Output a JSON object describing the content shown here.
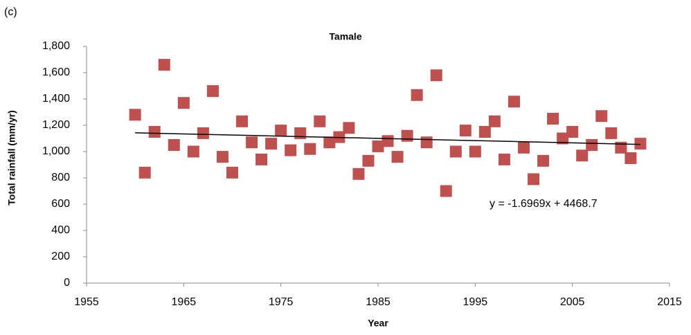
{
  "chart_data": {
    "type": "scatter",
    "panel_label": "(c)",
    "title": "Tamale",
    "x_label": "Year",
    "y_label": "Total rainfall (mm/yr)",
    "x": [
      1960,
      1961,
      1962,
      1963,
      1964,
      1965,
      1966,
      1967,
      1968,
      1969,
      1970,
      1971,
      1972,
      1973,
      1974,
      1975,
      1976,
      1977,
      1978,
      1979,
      1980,
      1981,
      1982,
      1983,
      1984,
      1985,
      1986,
      1987,
      1988,
      1989,
      1990,
      1991,
      1992,
      1993,
      1994,
      1995,
      1996,
      1997,
      1998,
      1999,
      2000,
      2001,
      2002,
      2003,
      2004,
      2005,
      2006,
      2007,
      2008,
      2009,
      2010,
      2011,
      2012
    ],
    "series": [
      {
        "color": "#c0504d",
        "values": [
          1280,
          840,
          1150,
          1660,
          1050,
          1370,
          1000,
          1140,
          1460,
          960,
          840,
          1230,
          1070,
          940,
          1060,
          1160,
          1010,
          1140,
          1020,
          1230,
          1070,
          1110,
          1180,
          830,
          930,
          1040,
          1080,
          960,
          1120,
          1430,
          1070,
          1580,
          700,
          1000,
          1160,
          1000,
          1150,
          1230,
          940,
          1380,
          1030,
          790,
          930,
          1250,
          1100,
          1150,
          970,
          1050,
          1270,
          1140,
          1030,
          950,
          1060
        ]
      }
    ],
    "trendline": {
      "label": "y = -1.6969x + 4468.7",
      "slope": -1.6969,
      "intercept": 4468.7
    },
    "xlim": [
      1955,
      2015
    ],
    "xticks": [
      1955,
      1965,
      1975,
      1985,
      1995,
      2005,
      2015
    ],
    "ylim": [
      0,
      1800
    ],
    "yticks": [
      0,
      200,
      400,
      600,
      800,
      {
        "value": 1000,
        "label": "1,000"
      },
      {
        "value": 1200,
        "label": "1,200"
      },
      {
        "value": 1400,
        "label": "1,400"
      },
      {
        "value": 1600,
        "label": "1,600"
      },
      {
        "value": 1800,
        "label": "1,800"
      }
    ],
    "grid": false
  }
}
